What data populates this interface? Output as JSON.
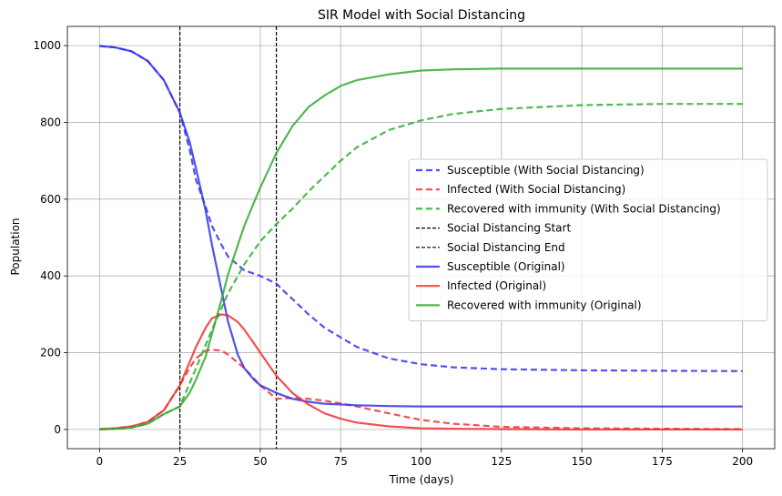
{
  "chart_data": {
    "type": "line",
    "title": "SIR Model with Social Distancing",
    "xlabel": "Time (days)",
    "ylabel": "Population",
    "xlim": [
      -10,
      210
    ],
    "ylim": [
      -50,
      1050
    ],
    "xticks": [
      0,
      25,
      50,
      75,
      100,
      125,
      150,
      175,
      200
    ],
    "yticks": [
      0,
      200,
      400,
      600,
      800,
      1000
    ],
    "grid": true,
    "legend_position": "center-right",
    "series": [
      {
        "name": "Susceptible (With Social Distancing)",
        "color": "#3333ee",
        "style": "dashed",
        "x": [
          0,
          5,
          10,
          15,
          20,
          25,
          28,
          30,
          33,
          35,
          38,
          40,
          45,
          50,
          55,
          58,
          60,
          65,
          70,
          75,
          80,
          90,
          100,
          110,
          125,
          150,
          175,
          200
        ],
        "y": [
          999,
          995,
          985,
          960,
          910,
          825,
          730,
          650,
          580,
          530,
          480,
          450,
          415,
          400,
          380,
          355,
          340,
          300,
          265,
          240,
          215,
          185,
          170,
          162,
          157,
          154,
          153,
          152
        ]
      },
      {
        "name": "Infected (With Social Distancing)",
        "color": "#ee3333",
        "style": "dashed",
        "x": [
          0,
          5,
          10,
          15,
          20,
          25,
          28,
          30,
          33,
          35,
          38,
          40,
          45,
          50,
          55,
          60,
          65,
          70,
          75,
          80,
          90,
          100,
          110,
          125,
          150,
          175,
          200
        ],
        "y": [
          1,
          3,
          8,
          20,
          50,
          115,
          160,
          185,
          205,
          208,
          205,
          195,
          160,
          115,
          80,
          82,
          80,
          75,
          68,
          60,
          42,
          25,
          15,
          7,
          3,
          2,
          1
        ]
      },
      {
        "name": "Recovered with immunity (With Social Distancing)",
        "color": "#33aa33",
        "style": "dashed",
        "x": [
          0,
          5,
          10,
          15,
          20,
          25,
          30,
          35,
          40,
          45,
          50,
          55,
          60,
          65,
          70,
          75,
          80,
          90,
          100,
          110,
          125,
          150,
          175,
          200
        ],
        "y": [
          0,
          2,
          5,
          15,
          40,
          60,
          160,
          260,
          355,
          430,
          490,
          535,
          575,
          620,
          660,
          700,
          735,
          780,
          805,
          822,
          835,
          845,
          848,
          848
        ]
      },
      {
        "name": "Social Distancing Start",
        "color": "#000000",
        "style": "vline",
        "x_value": 25
      },
      {
        "name": "Social Distancing End",
        "color": "#000000",
        "style": "vline",
        "x_value": 55
      },
      {
        "name": "Susceptible (Original)",
        "color": "#3333ee",
        "style": "solid",
        "x": [
          0,
          5,
          10,
          15,
          20,
          25,
          28,
          30,
          33,
          35,
          38,
          40,
          43,
          45,
          48,
          50,
          55,
          60,
          65,
          70,
          80,
          90,
          100,
          125,
          150,
          175,
          200
        ],
        "y": [
          999,
          995,
          985,
          960,
          910,
          825,
          750,
          680,
          570,
          480,
          360,
          280,
          195,
          160,
          130,
          115,
          95,
          80,
          72,
          67,
          63,
          61,
          60,
          60,
          60,
          60,
          60
        ]
      },
      {
        "name": "Infected (Original)",
        "color": "#ee3333",
        "style": "solid",
        "x": [
          0,
          5,
          10,
          15,
          20,
          25,
          28,
          30,
          33,
          35,
          38,
          40,
          43,
          45,
          48,
          50,
          55,
          60,
          65,
          70,
          75,
          80,
          90,
          100,
          110,
          125,
          150,
          175,
          200
        ],
        "y": [
          1,
          3,
          8,
          20,
          50,
          115,
          175,
          215,
          265,
          290,
          300,
          297,
          280,
          260,
          225,
          200,
          140,
          95,
          65,
          42,
          28,
          18,
          8,
          3,
          2,
          1,
          0,
          0,
          0
        ]
      },
      {
        "name": "Recovered with immunity (Original)",
        "color": "#33aa33",
        "style": "solid",
        "x": [
          0,
          5,
          10,
          15,
          20,
          25,
          28,
          30,
          33,
          35,
          38,
          40,
          43,
          45,
          48,
          50,
          55,
          60,
          65,
          70,
          75,
          80,
          90,
          100,
          110,
          125,
          150,
          175,
          200
        ],
        "y": [
          0,
          2,
          5,
          15,
          40,
          60,
          95,
          130,
          190,
          250,
          340,
          405,
          480,
          530,
          590,
          630,
          720,
          790,
          840,
          870,
          895,
          910,
          925,
          935,
          938,
          940,
          940,
          940,
          940
        ]
      }
    ]
  }
}
